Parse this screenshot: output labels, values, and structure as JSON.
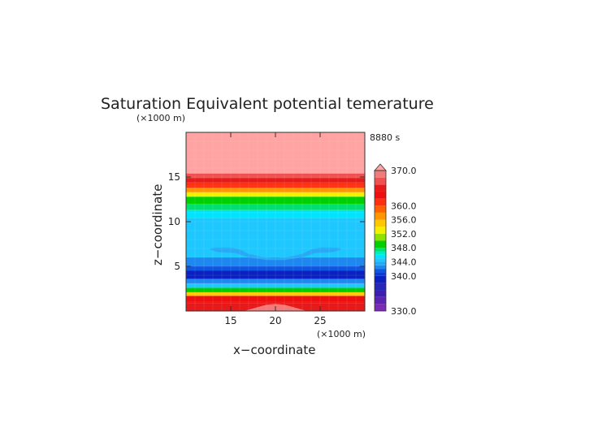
{
  "chart_data": {
    "type": "heatmap",
    "title": "Saturation Equivalent potential temerature",
    "time_label": "8880 s",
    "xlabel": "x−coordinate",
    "ylabel": "z−coordinate",
    "x_unit": "(×1000 m)",
    "y_unit": "(×1000 m)",
    "xlim": [
      10,
      30
    ],
    "ylim": [
      0,
      20
    ],
    "x_ticks": [
      15,
      20,
      25
    ],
    "y_ticks": [
      5,
      10,
      15
    ],
    "colorbar": {
      "range": [
        330,
        370
      ],
      "labels": [
        "370.0",
        "360.0",
        "356.0",
        "352.0",
        "348.0",
        "344.0",
        "340.0",
        "330.0"
      ],
      "label_values": [
        370,
        360,
        356,
        352,
        348,
        344,
        340,
        330
      ],
      "extend": "max"
    },
    "levels": [
      {
        "lower": 330,
        "upper": 332,
        "color": "#7b2ab8"
      },
      {
        "lower": 332,
        "upper": 334,
        "color": "#5a23b0"
      },
      {
        "lower": 334,
        "upper": 336,
        "color": "#3a1fb0"
      },
      {
        "lower": 336,
        "upper": 338,
        "color": "#2626b8"
      },
      {
        "lower": 338,
        "upper": 340,
        "color": "#0a20c0"
      },
      {
        "lower": 340,
        "upper": 341,
        "color": "#0a3cd0"
      },
      {
        "lower": 341,
        "upper": 342,
        "color": "#0f55e0"
      },
      {
        "lower": 342,
        "upper": 343,
        "color": "#1e88f0"
      },
      {
        "lower": 343,
        "upper": 344,
        "color": "#28a8f5"
      },
      {
        "lower": 344,
        "upper": 345,
        "color": "#1ec8ff"
      },
      {
        "lower": 345,
        "upper": 346,
        "color": "#00e4ff"
      },
      {
        "lower": 346,
        "upper": 347,
        "color": "#00eebb"
      },
      {
        "lower": 347,
        "upper": 348,
        "color": "#00e070"
      },
      {
        "lower": 348,
        "upper": 350,
        "color": "#00d000"
      },
      {
        "lower": 350,
        "upper": 352,
        "color": "#90e000"
      },
      {
        "lower": 352,
        "upper": 354,
        "color": "#f0f000"
      },
      {
        "lower": 354,
        "upper": 356,
        "color": "#ffc800"
      },
      {
        "lower": 356,
        "upper": 358,
        "color": "#ff9600"
      },
      {
        "lower": 358,
        "upper": 360,
        "color": "#ff6000"
      },
      {
        "lower": 360,
        "upper": 362,
        "color": "#ff3010"
      },
      {
        "lower": 362,
        "upper": 364,
        "color": "#ee1010"
      },
      {
        "lower": 364,
        "upper": 366,
        "color": "#e51a1a"
      },
      {
        "lower": 366,
        "upper": 368,
        "color": "#f05050"
      },
      {
        "lower": 368,
        "upper": 370,
        "color": "#f47a7a"
      },
      {
        "lower": 370,
        "upper": 380,
        "color": "#ffa3a3"
      }
    ],
    "layers": [
      {
        "z": [
          0.0,
          0.9
        ],
        "value": 364
      },
      {
        "z": [
          0.9,
          1.7
        ],
        "value": 362
      },
      {
        "z": [
          1.7,
          2.1
        ],
        "value": 355
      },
      {
        "z": [
          2.1,
          2.6
        ],
        "value": 349
      },
      {
        "z": [
          2.6,
          3.1
        ],
        "value": 344.5
      },
      {
        "z": [
          3.1,
          3.6
        ],
        "value": 342.5
      },
      {
        "z": [
          3.6,
          4.5
        ],
        "value": 338.5
      },
      {
        "z": [
          4.5,
          5.0
        ],
        "value": 341.5
      },
      {
        "z": [
          5.0,
          6.0
        ],
        "value": 342.5
      },
      {
        "z": [
          6.0,
          10.4
        ],
        "value": 344.5
      },
      {
        "z": [
          10.4,
          11.3
        ],
        "value": 345.5
      },
      {
        "z": [
          11.3,
          12.0
        ],
        "value": 347.5
      },
      {
        "z": [
          12.0,
          12.8
        ],
        "value": 349
      },
      {
        "z": [
          12.8,
          13.3
        ],
        "value": 353
      },
      {
        "z": [
          13.3,
          13.8
        ],
        "value": 357
      },
      {
        "z": [
          13.8,
          14.4
        ],
        "value": 361
      },
      {
        "z": [
          14.4,
          14.9
        ],
        "value": 364
      },
      {
        "z": [
          14.9,
          15.4
        ],
        "value": 367
      },
      {
        "z": [
          15.4,
          20.0
        ],
        "value": 372
      }
    ],
    "features": [
      {
        "name": "mid-level minimum lobe",
        "value": 343.5,
        "outline": [
          [
            12.6,
            6.9
          ],
          [
            13.0,
            7.1
          ],
          [
            15.0,
            7.1
          ],
          [
            16.0,
            6.9
          ],
          [
            17.0,
            6.4
          ],
          [
            18.5,
            6.05
          ],
          [
            20.0,
            5.95
          ],
          [
            21.5,
            6.05
          ],
          [
            23.0,
            6.4
          ],
          [
            24.0,
            6.9
          ],
          [
            25.0,
            7.1
          ],
          [
            27.0,
            7.1
          ],
          [
            27.4,
            6.9
          ],
          [
            26.5,
            6.6
          ],
          [
            24.5,
            6.5
          ],
          [
            23.0,
            6.0
          ],
          [
            21.0,
            5.7
          ],
          [
            19.0,
            5.7
          ],
          [
            17.0,
            6.0
          ],
          [
            15.5,
            6.5
          ],
          [
            13.5,
            6.6
          ]
        ]
      },
      {
        "name": "surface maximum mound",
        "value": 368,
        "outline": [
          [
            16.5,
            0.0
          ],
          [
            17.5,
            0.3
          ],
          [
            19.0,
            0.7
          ],
          [
            20.0,
            0.8
          ],
          [
            21.0,
            0.7
          ],
          [
            22.5,
            0.3
          ],
          [
            23.5,
            0.0
          ]
        ]
      }
    ]
  }
}
